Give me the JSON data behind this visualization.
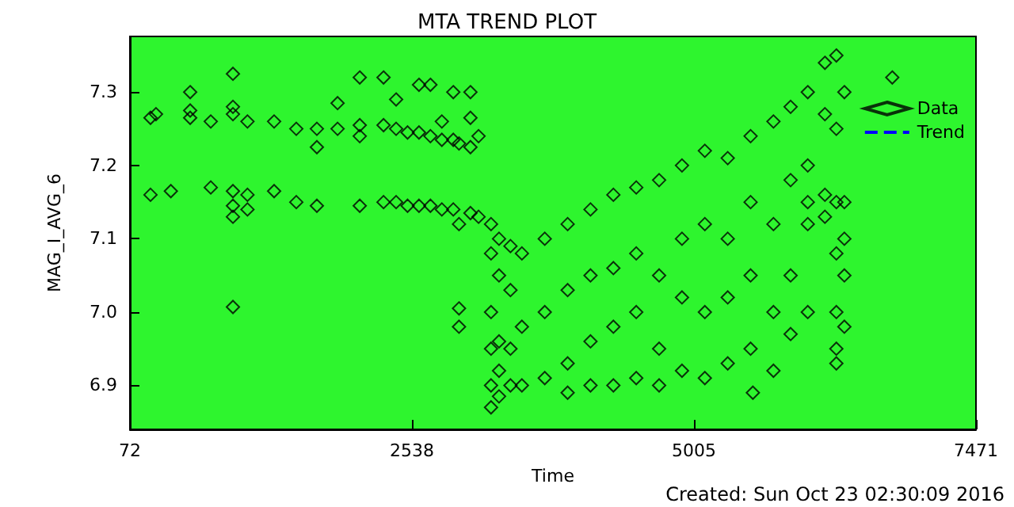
{
  "chart_data": {
    "type": "scatter",
    "title": "MTA TREND PLOT",
    "xlabel": "Time",
    "ylabel": "MAG_I_AVG_6",
    "annotations": [
      "Created: Sun Oct 23 02:30:09 2016"
    ],
    "xlim": [
      72,
      7471
    ],
    "xticks": [
      72,
      2538,
      5005,
      7471
    ],
    "ylim": [
      6.84,
      7.376
    ],
    "yticks": [
      {
        "value": 6.9,
        "label": "6.9"
      },
      {
        "value": 7,
        "label": "7.0"
      },
      {
        "value": 7.1,
        "label": "7.1"
      },
      {
        "value": 7.2,
        "label": "7.2"
      },
      {
        "value": 7.3,
        "label": "7.3"
      }
    ],
    "grid": false,
    "legend": "top right",
    "series": [
      {
        "name": "Data",
        "color": "#000000",
        "marker": "diamond",
        "x": [
          252,
          252,
          300,
          430,
          599,
          599,
          599,
          779,
          779,
          973,
          973,
          973,
          973,
          973,
          973,
          973,
          1100,
          1100,
          1100,
          1333,
          1333,
          1527,
          1527,
          1707,
          1707,
          1707,
          1888,
          1888,
          2082,
          2082,
          2082,
          2082,
          2290,
          2290,
          2290,
          2400,
          2400,
          2400,
          2500,
          2500,
          2600,
          2600,
          2600,
          2700,
          2700,
          2700,
          2800,
          2800,
          2800,
          2900,
          2900,
          2900,
          2950,
          2950,
          3050,
          3050,
          3050,
          3050,
          3121,
          3121,
          2950,
          2950,
          3230,
          3230,
          3230,
          3230,
          3230,
          3230,
          3300,
          3300,
          3300,
          3300,
          3300,
          3400,
          3400,
          3400,
          3400,
          3500,
          3500,
          3500,
          3700,
          3700,
          3700,
          3900,
          3900,
          3900,
          3900,
          4100,
          4100,
          4100,
          4100,
          4300,
          4300,
          4300,
          4300,
          4500,
          4500,
          4500,
          4500,
          4700,
          4700,
          4700,
          4700,
          4900,
          4900,
          4900,
          4900,
          5100,
          5100,
          5100,
          5100,
          5300,
          5300,
          5300,
          5300,
          5520,
          5500,
          5500,
          5500,
          5500,
          5700,
          5700,
          5700,
          5700,
          5850,
          5850,
          5850,
          5850,
          6000,
          6000,
          6000,
          6000,
          6000,
          6150,
          6150,
          6150,
          6150,
          6250,
          6250,
          6250,
          6250,
          6250,
          6250,
          6250,
          6320,
          6320,
          6320,
          6320,
          6320,
          6739
        ],
        "values": [
          7.265,
          7.16,
          7.27,
          7.165,
          7.3,
          7.275,
          7.265,
          7.26,
          7.17,
          7.325,
          7.28,
          7.27,
          7.165,
          7.145,
          7.13,
          7.007,
          7.26,
          7.16,
          7.14,
          7.26,
          7.165,
          7.25,
          7.15,
          7.25,
          7.225,
          7.145,
          7.285,
          7.25,
          7.32,
          7.255,
          7.24,
          7.145,
          7.32,
          7.255,
          7.15,
          7.29,
          7.25,
          7.15,
          7.245,
          7.145,
          7.31,
          7.245,
          7.145,
          7.31,
          7.24,
          7.145,
          7.26,
          7.235,
          7.14,
          7.3,
          7.235,
          7.14,
          7.23,
          7.12,
          7.3,
          7.265,
          7.225,
          7.135,
          7.24,
          7.13,
          7.005,
          6.98,
          7.12,
          7.08,
          7.0,
          6.95,
          6.9,
          6.87,
          7.1,
          7.05,
          6.96,
          6.92,
          6.885,
          7.09,
          7.03,
          6.95,
          6.9,
          7.08,
          6.98,
          6.9,
          7.1,
          7.0,
          6.91,
          7.12,
          7.03,
          6.93,
          6.89,
          7.14,
          7.05,
          6.96,
          6.9,
          7.16,
          7.06,
          6.98,
          6.9,
          7.17,
          7.08,
          7.0,
          6.91,
          7.18,
          7.05,
          6.95,
          6.9,
          7.2,
          7.1,
          7.02,
          6.92,
          7.22,
          7.12,
          7.0,
          6.91,
          7.21,
          7.1,
          7.02,
          6.93,
          6.89,
          7.24,
          7.15,
          7.05,
          6.95,
          7.26,
          7.12,
          7.0,
          6.92,
          7.28,
          7.18,
          7.05,
          6.97,
          7.3,
          7.2,
          7.15,
          7.12,
          7.0,
          7.34,
          7.27,
          7.16,
          7.13,
          7.35,
          7.25,
          7.15,
          7.08,
          7.0,
          6.95,
          6.93,
          7.3,
          7.15,
          7.1,
          7.05,
          6.98,
          7.32
        ]
      },
      {
        "name": "Trend",
        "type": "line",
        "color": "#0000ff",
        "marker": "star",
        "line_style": "dashed"
      }
    ]
  }
}
